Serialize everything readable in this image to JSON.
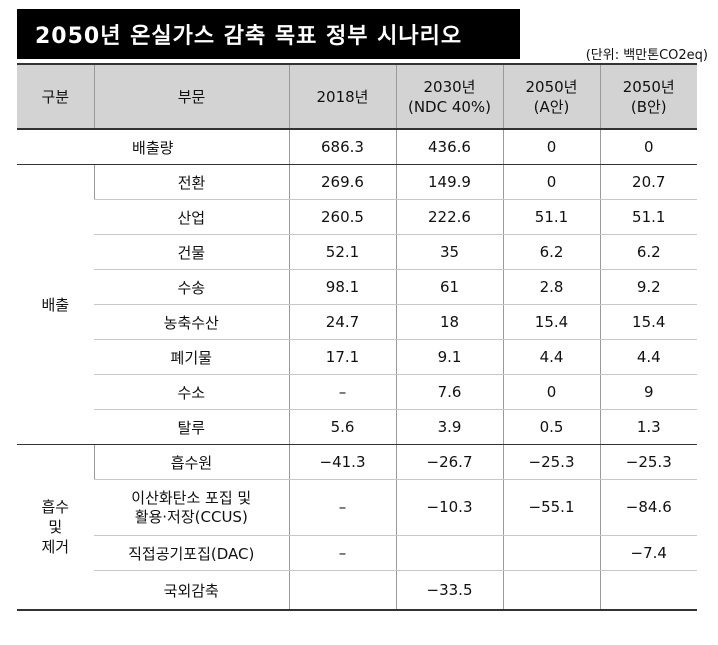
{
  "title": "2050년 온실가스 감축 목표 정부 시나리오",
  "unit": "(단위: 백만톤CO2eq)",
  "headers": {
    "category": "구분",
    "sector": "부문",
    "y2018": "2018년",
    "y2030_line1": "2030년",
    "y2030_line2": "(NDC 40%)",
    "a2050_line1": "2050년",
    "a2050_line2": "(A안)",
    "b2050_line1": "2050년",
    "b2050_line2": "(B안)"
  },
  "total_row": {
    "label": "배출량",
    "y2018": "686.3",
    "y2030": "436.6",
    "a2050": "0",
    "b2050": "0"
  },
  "emission": {
    "category": "배출",
    "rows": [
      {
        "sector": "전환",
        "y2018": "269.6",
        "y2030": "149.9",
        "a2050": "0",
        "b2050": "20.7"
      },
      {
        "sector": "산업",
        "y2018": "260.5",
        "y2030": "222.6",
        "a2050": "51.1",
        "b2050": "51.1"
      },
      {
        "sector": "건물",
        "y2018": "52.1",
        "y2030": "35",
        "a2050": "6.2",
        "b2050": "6.2"
      },
      {
        "sector": "수송",
        "y2018": "98.1",
        "y2030": "61",
        "a2050": "2.8",
        "b2050": "9.2"
      },
      {
        "sector": "농축수산",
        "y2018": "24.7",
        "y2030": "18",
        "a2050": "15.4",
        "b2050": "15.4"
      },
      {
        "sector": "폐기물",
        "y2018": "17.1",
        "y2030": "9.1",
        "a2050": "4.4",
        "b2050": "4.4"
      },
      {
        "sector": "수소",
        "y2018": "–",
        "y2030": "7.6",
        "a2050": "0",
        "b2050": "9"
      },
      {
        "sector": "탈루",
        "y2018": "5.6",
        "y2030": "3.9",
        "a2050": "0.5",
        "b2050": "1.3"
      }
    ]
  },
  "absorption": {
    "category_line1": "흡수",
    "category_line2": "및",
    "category_line3": "제거",
    "rows": [
      {
        "sector": "흡수원",
        "y2018": "−41.3",
        "y2030": "−26.7",
        "a2050": "−25.3",
        "b2050": "−25.3"
      },
      {
        "sector_line1": "이산화탄소 포집 및",
        "sector_line2": "활용·저장(CCUS)",
        "y2018": "–",
        "y2030": "−10.3",
        "a2050": "−55.1",
        "b2050": "−84.6"
      },
      {
        "sector": "직접공기포집(DAC)",
        "y2018": "–",
        "y2030": "",
        "a2050": "",
        "b2050": "−7.4"
      },
      {
        "sector": "국외감축",
        "y2018": "",
        "y2030": "−33.5",
        "a2050": "",
        "b2050": ""
      }
    ]
  }
}
